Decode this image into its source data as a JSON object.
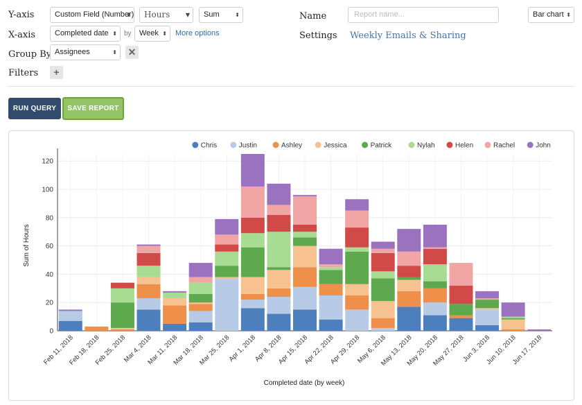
{
  "controls": {
    "yaxis_label": "Y-axis",
    "xaxis_label": "X-axis",
    "groupby_label": "Group By",
    "filters_label": "Filters",
    "y_field": "Custom Field (Number)",
    "y_unit": "Hours",
    "y_agg": "Sum",
    "x_field": "Completed date",
    "by_text": "by",
    "x_period": "Week",
    "more_options": "More options",
    "group_field": "Assignees",
    "name_label": "Name",
    "name_placeholder": "Report name...",
    "chart_type": "Bar chart",
    "settings_label": "Settings",
    "settings_link": "Weekly Emails & Sharing",
    "run_query": "RUN QUERY",
    "save_report": "SAVE REPORT"
  },
  "chart_data": {
    "type": "bar",
    "stacked": true,
    "xlabel": "Completed date (by week)",
    "ylabel": "Sum of Hours",
    "ylim": [
      0,
      125
    ],
    "yticks": [
      0,
      20,
      40,
      60,
      80,
      100,
      120
    ],
    "legend_position": "top-right",
    "grid": true,
    "categories": [
      "Feb 11, 2018",
      "Feb 18, 2018",
      "Feb 25, 2018",
      "Mar 4, 2018",
      "Mar 11, 2018",
      "Mar 18, 2018",
      "Mar 25, 2018",
      "Apr 1, 2018",
      "Apr 8, 2018",
      "Apr 15, 2018",
      "Apr 22, 2018",
      "Apr 29, 2018",
      "May 6, 2018",
      "May 13, 2018",
      "May 20, 2018",
      "May 27, 2018",
      "Jun 3, 2018",
      "Jun 10, 2018",
      "Jun 17, 2018"
    ],
    "series": [
      {
        "name": "Chris",
        "color": "#4e7fbd",
        "values": [
          7,
          0,
          0,
          15,
          5,
          6,
          0,
          16,
          12,
          15,
          8,
          0,
          0,
          17,
          11,
          9,
          4,
          0,
          0
        ]
      },
      {
        "name": "Justin",
        "color": "#b7cbe6",
        "values": [
          7,
          0,
          0,
          8,
          0,
          8,
          37,
          6,
          12,
          16,
          17,
          15,
          2,
          0,
          9,
          0,
          11,
          0,
          0
        ]
      },
      {
        "name": "Ashley",
        "color": "#ee8f4a",
        "values": [
          0,
          3,
          1,
          10,
          13,
          5,
          0,
          4,
          6,
          14,
          8,
          10,
          7,
          11,
          10,
          2,
          0,
          1,
          0
        ]
      },
      {
        "name": "Jessica",
        "color": "#f7c28f",
        "values": [
          0,
          0,
          1,
          5,
          5,
          1,
          1,
          12,
          13,
          15,
          0,
          8,
          12,
          8,
          0,
          0,
          1,
          7,
          0
        ]
      },
      {
        "name": "Patrick",
        "color": "#5ea84d",
        "values": [
          0,
          0,
          18,
          0,
          0,
          6,
          8,
          21,
          2,
          6,
          10,
          23,
          16,
          2,
          5,
          8,
          6,
          1,
          0
        ]
      },
      {
        "name": "Nylah",
        "color": "#a9dc93",
        "values": [
          0,
          0,
          10,
          8,
          4,
          8,
          10,
          10,
          25,
          4,
          2,
          3,
          5,
          0,
          12,
          0,
          0,
          1,
          0
        ]
      },
      {
        "name": "Helen",
        "color": "#d24a47",
        "values": [
          0,
          0,
          4,
          9,
          0,
          0,
          5,
          11,
          12,
          5,
          0,
          14,
          13,
          8,
          11,
          13,
          0,
          0,
          0
        ]
      },
      {
        "name": "Rachel",
        "color": "#f2a5a5",
        "values": [
          0,
          0,
          0,
          5,
          0,
          4,
          7,
          22,
          7,
          20,
          2,
          12,
          3,
          10,
          1,
          16,
          1,
          0,
          0
        ]
      },
      {
        "name": "John",
        "color": "#9b72bf",
        "values": [
          1,
          0,
          0,
          1,
          1,
          10,
          11,
          23,
          15,
          1,
          11,
          8,
          5,
          16,
          16,
          0,
          5,
          10,
          1
        ]
      }
    ]
  }
}
